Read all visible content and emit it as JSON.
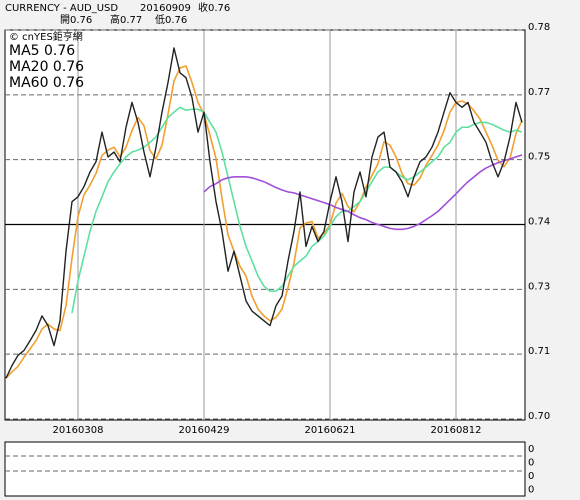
{
  "chart_data": {
    "type": "line",
    "header": [
      "CURRENCY - AUD_USD",
      "20160909",
      "收0.76"
    ],
    "header2": [
      "開0.76",
      "高0.77",
      "低0.76"
    ],
    "source": "© cnYES鉅亨網",
    "color": "#222222",
    "categories": [
      null,
      null,
      null,
      null,
      null,
      null,
      null,
      null,
      null,
      null,
      null,
      null,
      "20160308",
      null,
      null,
      null,
      null,
      null,
      null,
      null,
      null,
      null,
      null,
      null,
      null,
      null,
      null,
      null,
      null,
      null,
      null,
      null,
      null,
      "20160429",
      null,
      null,
      null,
      null,
      null,
      null,
      null,
      null,
      null,
      null,
      null,
      null,
      null,
      null,
      null,
      null,
      null,
      null,
      null,
      null,
      "20160621",
      null,
      null,
      null,
      null,
      null,
      null,
      null,
      null,
      null,
      null,
      null,
      null,
      null,
      null,
      null,
      null,
      null,
      null,
      null,
      null,
      "20160812",
      null,
      null,
      null,
      null,
      null,
      null,
      null,
      null,
      null,
      null,
      null
    ],
    "values": [
      0.7084,
      0.711,
      0.7131,
      0.7141,
      0.7161,
      0.7182,
      0.7212,
      0.7192,
      0.7151,
      0.7202,
      0.7345,
      0.7447,
      0.7457,
      0.7478,
      0.7508,
      0.7529,
      0.759,
      0.7539,
      0.7549,
      0.7529,
      0.76,
      0.7651,
      0.761,
      0.7549,
      0.7498,
      0.7559,
      0.7631,
      0.7692,
      0.7763,
      0.7712,
      0.7702,
      0.7661,
      0.759,
      0.7631,
      0.7529,
      0.7447,
      0.7386,
      0.7304,
      0.7345,
      0.7294,
      0.7243,
      0.7222,
      0.7212,
      0.7202,
      0.7192,
      0.7233,
      0.7253,
      0.7325,
      0.7386,
      0.7467,
      0.7355,
      0.7396,
      0.7365,
      0.7386,
      0.7447,
      0.7498,
      0.7447,
      0.7365,
      0.7467,
      0.7508,
      0.7457,
      0.7539,
      0.758,
      0.759,
      0.7518,
      0.7508,
      0.7488,
      0.7457,
      0.7498,
      0.7529,
      0.7539,
      0.7559,
      0.759,
      0.7631,
      0.7671,
      0.7651,
      0.7641,
      0.7651,
      0.761,
      0.759,
      0.7569,
      0.7529,
      0.7498,
      0.7529,
      0.758,
      0.7651,
      0.761
    ],
    "series": [
      {
        "name": "MA5 0.76",
        "color": "#f0a030",
        "values": [
          0.7084,
          0.7097,
          0.7108,
          0.7127,
          0.7144,
          0.7161,
          0.7185,
          0.7195,
          0.7185,
          0.7182,
          0.7233,
          0.7331,
          0.7416,
          0.7461,
          0.7481,
          0.7505,
          0.7542,
          0.7553,
          0.7559,
          0.7539,
          0.7559,
          0.7593,
          0.762,
          0.7603,
          0.7552,
          0.7535,
          0.7563,
          0.7627,
          0.7695,
          0.7722,
          0.7726,
          0.7692,
          0.7651,
          0.7627,
          0.7583,
          0.7536,
          0.7454,
          0.7379,
          0.7345,
          0.7314,
          0.7294,
          0.7253,
          0.7226,
          0.7212,
          0.7202,
          0.7209,
          0.7226,
          0.727,
          0.7321,
          0.7393,
          0.7403,
          0.7406,
          0.7372,
          0.7382,
          0.7399,
          0.7444,
          0.7464,
          0.7437,
          0.7426,
          0.7447,
          0.7477,
          0.7501,
          0.7525,
          0.757,
          0.7563,
          0.7539,
          0.7505,
          0.7484,
          0.7481,
          0.7495,
          0.7522,
          0.7542,
          0.7563,
          0.7593,
          0.7631,
          0.7651,
          0.7654,
          0.7648,
          0.7634,
          0.7617,
          0.759,
          0.7563,
          0.7532,
          0.7519,
          0.7536,
          0.7587,
          0.7614
        ]
      },
      {
        "name": "MA20 0.76",
        "color": "#5ee0a0",
        "values": [
          null,
          null,
          null,
          null,
          null,
          null,
          null,
          null,
          null,
          null,
          null,
          0.7218,
          0.7284,
          0.7335,
          0.7386,
          0.7427,
          0.7457,
          0.7488,
          0.7508,
          0.7525,
          0.7539,
          0.7549,
          0.7553,
          0.7559,
          0.7569,
          0.758,
          0.76,
          0.762,
          0.7631,
          0.7641,
          0.7635,
          0.7637,
          0.7637,
          0.7631,
          0.761,
          0.759,
          0.7549,
          0.7498,
          0.7447,
          0.7396,
          0.7355,
          0.7325,
          0.7294,
          0.7273,
          0.7263,
          0.7263,
          0.7273,
          0.7294,
          0.7314,
          0.7325,
          0.7335,
          0.7355,
          0.7365,
          0.7376,
          0.7396,
          0.7416,
          0.7427,
          0.7427,
          0.7437,
          0.7447,
          0.7467,
          0.7488,
          0.7508,
          0.7518,
          0.7518,
          0.7508,
          0.7498,
          0.7492,
          0.7498,
          0.7508,
          0.7518,
          0.7529,
          0.7539,
          0.7559,
          0.7569,
          0.759,
          0.76,
          0.76,
          0.7606,
          0.761,
          0.761,
          0.7606,
          0.76,
          0.7594,
          0.759,
          0.7594,
          0.759
        ]
      },
      {
        "name": "MA60 0.76",
        "color": "#a050d8",
        "values": [
          null,
          null,
          null,
          null,
          null,
          null,
          null,
          null,
          null,
          null,
          null,
          null,
          null,
          null,
          null,
          null,
          null,
          null,
          null,
          null,
          null,
          null,
          null,
          null,
          null,
          null,
          null,
          null,
          null,
          null,
          null,
          null,
          null,
          0.7467,
          0.7478,
          0.7484,
          0.7492,
          0.7496,
          0.7498,
          0.7498,
          0.7498,
          0.7496,
          0.7492,
          0.7488,
          0.7482,
          0.7476,
          0.7471,
          0.7467,
          0.7465,
          0.7461,
          0.7457,
          0.7453,
          0.7449,
          0.7445,
          0.7441,
          0.7435,
          0.7431,
          0.7427,
          0.742,
          0.7414,
          0.741,
          0.7404,
          0.74,
          0.7396,
          0.7392,
          0.739,
          0.739,
          0.7392,
          0.7396,
          0.7402,
          0.741,
          0.7418,
          0.7427,
          0.7439,
          0.7451,
          0.7463,
          0.7476,
          0.7488,
          0.7498,
          0.7508,
          0.7516,
          0.7522,
          0.7527,
          0.7531,
          0.7535,
          0.7539,
          0.7543
        ]
      }
    ],
    "ylim": [
      0.7,
      0.78
    ],
    "yticks": [
      {
        "value": 0.7,
        "label": "0.70"
      },
      {
        "value": 0.71333,
        "label": "0.71"
      },
      {
        "value": 0.72667,
        "label": "0.73"
      },
      0.74,
      {
        "value": 0.75333,
        "label": "0.75"
      },
      {
        "value": 0.76667,
        "label": "0.77"
      },
      0.78
    ],
    "reference_line": 0.74,
    "grid": true,
    "sub_ylim": [
      0,
      0.4
    ],
    "sub_yticks": [
      {
        "value": 0.35,
        "label": "0"
      },
      {
        "value": 0.25,
        "label": "0"
      },
      {
        "value": 0.15,
        "label": "0"
      },
      {
        "value": 0.05,
        "label": "0"
      }
    ]
  }
}
